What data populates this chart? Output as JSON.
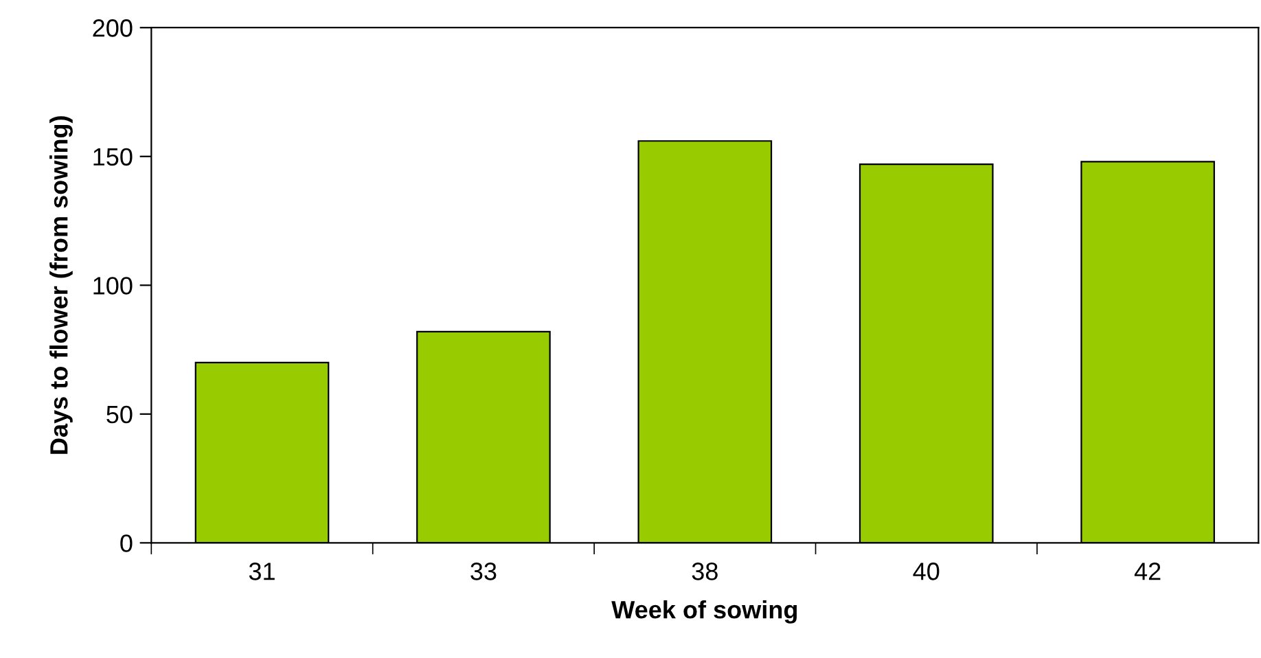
{
  "chart_data": {
    "type": "bar",
    "xlabel": "Week of sowing",
    "ylabel": "Days to flower (from sowing)",
    "categories": [
      "31",
      "33",
      "38",
      "40",
      "42"
    ],
    "values": [
      70,
      82,
      156,
      147,
      148
    ],
    "color": "#99cc00",
    "ylim": [
      0,
      200
    ],
    "yticks": [
      0,
      50,
      100,
      150,
      200
    ],
    "grid": false,
    "legend": false
  }
}
